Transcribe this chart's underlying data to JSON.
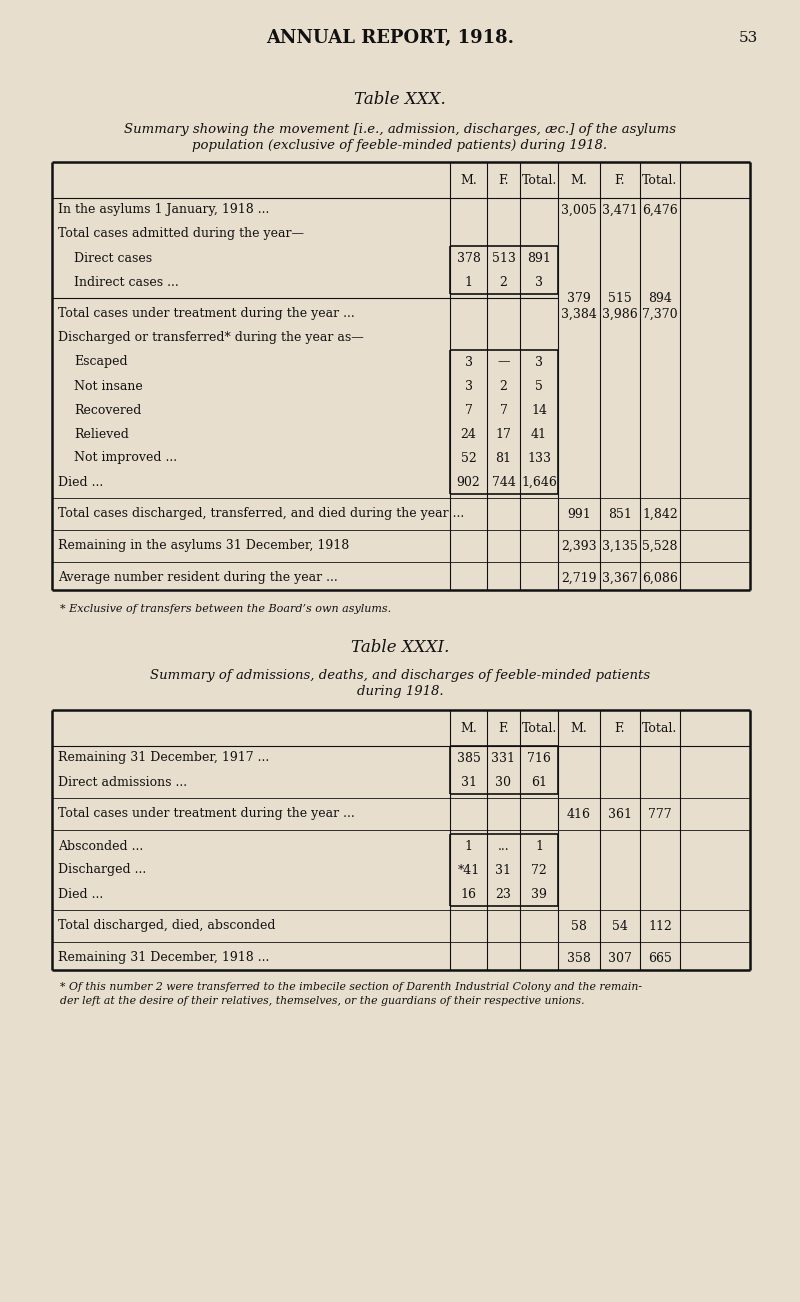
{
  "bg_color": "#e8dece",
  "text_color": "#111111",
  "page_title": "ANNUAL REPORT, 1918.",
  "page_number": "53",
  "table1_title": "Table XXX.",
  "table1_subtitle_line1": "Summary showing the movement [i.e., admission, discharges, æc.] of the asylums",
  "table1_subtitle_line2": "population (exclusive of feeble-minded patients) during 1918.",
  "table2_title": "Table XXXI.",
  "table2_subtitle_line1": "Summary of admissions, deaths, and discharges of feeble-minded patients",
  "table2_subtitle_line2": "during 1918.",
  "table1_footnote": "* Exclusive of transfers between the Board’s own asylums.",
  "table2_footnote_line1": "* Of this number 2 were transferred to the imbecile section of Darenth Industrial Colony and the remain-",
  "table2_footnote_line2": "der left at the desire of their relatives, themselves, or the guardians of their respective unions."
}
